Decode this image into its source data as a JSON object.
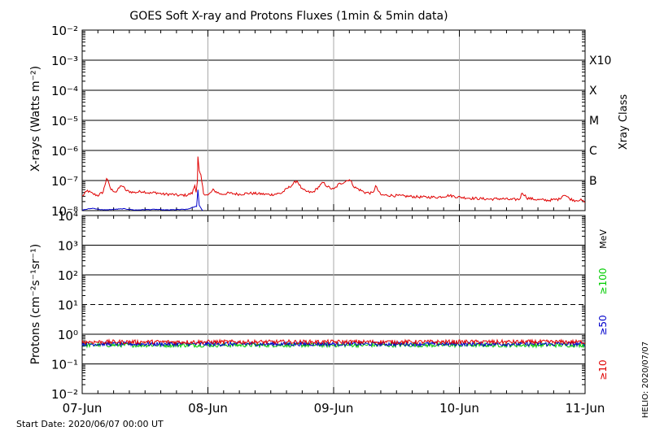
{
  "chart_data": [
    {
      "type": "line",
      "title": "GOES Soft X-ray and Protons Fluxes   (1min & 5min data)",
      "ylabel": "X-rays (Watts m⁻²)",
      "y_scale": "log",
      "ylim": [
        1e-08,
        0.01
      ],
      "y_tick_labels": [
        "10⁻⁸",
        "10⁻⁷",
        "10⁻⁶",
        "10⁻⁵",
        "10⁻⁴",
        "10⁻³",
        "10⁻²"
      ],
      "right_axis_label": "Xray Class",
      "class_labels": [
        {
          "label": "B",
          "value": 1e-07
        },
        {
          "label": "C",
          "value": 1e-06
        },
        {
          "label": "M",
          "value": 1e-05
        },
        {
          "label": "X",
          "value": 0.0001
        },
        {
          "label": "X10",
          "value": 0.001
        }
      ],
      "series": [
        {
          "color": "#e00000",
          "points": [
            [
              "2020-06-07 00:00",
              3e-08
            ],
            [
              "2020-06-07 01:00",
              4.6e-08
            ],
            [
              "2020-06-07 02:00",
              3.6e-08
            ],
            [
              "2020-06-07 03:00",
              3.2e-08
            ],
            [
              "2020-06-07 03:40",
              3.8e-08
            ],
            [
              "2020-06-07 04:00",
              4.2e-08
            ],
            [
              "2020-06-07 04:40",
              1.2e-07
            ],
            [
              "2020-06-07 05:30",
              5e-08
            ],
            [
              "2020-06-07 06:30",
              4.2e-08
            ],
            [
              "2020-06-07 07:30",
              7e-08
            ],
            [
              "2020-06-07 08:30",
              4.5e-08
            ],
            [
              "2020-06-07 10:00",
              4e-08
            ],
            [
              "2020-06-07 11:30",
              4.4e-08
            ],
            [
              "2020-06-07 13:00",
              3.8e-08
            ],
            [
              "2020-06-07 14:00",
              4e-08
            ],
            [
              "2020-06-07 15:30",
              3.5e-08
            ],
            [
              "2020-06-07 17:00",
              3.5e-08
            ],
            [
              "2020-06-07 18:30",
              3.2e-08
            ],
            [
              "2020-06-07 20:00",
              3.3e-08
            ],
            [
              "2020-06-07 21:00",
              3.8e-08
            ],
            [
              "2020-06-07 21:30",
              7e-08
            ],
            [
              "2020-06-07 21:45",
              4.5e-08
            ],
            [
              "2020-06-07 22:00",
              1e-07
            ],
            [
              "2020-06-07 22:05",
              6e-07
            ],
            [
              "2020-06-07 22:20",
              2e-07
            ],
            [
              "2020-06-07 22:40",
              1.4e-07
            ],
            [
              "2020-06-07 23:10",
              3.8e-08
            ],
            [
              "2020-06-08 00:00",
              3.2e-08
            ],
            [
              "2020-06-08 01:00",
              4.8e-08
            ],
            [
              "2020-06-08 02:30",
              3.5e-08
            ],
            [
              "2020-06-08 04:00",
              3.8e-08
            ],
            [
              "2020-06-08 06:00",
              3.5e-08
            ],
            [
              "2020-06-08 08:00",
              3.8e-08
            ],
            [
              "2020-06-08 10:00",
              3.6e-08
            ],
            [
              "2020-06-08 12:00",
              3.4e-08
            ],
            [
              "2020-06-08 14:00",
              3.8e-08
            ],
            [
              "2020-06-08 16:00",
              7e-08
            ],
            [
              "2020-06-08 17:00",
              1e-07
            ],
            [
              "2020-06-08 18:00",
              5e-08
            ],
            [
              "2020-06-08 19:00",
              4.2e-08
            ],
            [
              "2020-06-08 20:00",
              4e-08
            ],
            [
              "2020-06-08 22:00",
              8.5e-08
            ],
            [
              "2020-06-08 23:00",
              6e-08
            ],
            [
              "2020-06-09 00:00",
              5e-08
            ],
            [
              "2020-06-09 01:00",
              7.5e-08
            ],
            [
              "2020-06-09 02:00",
              9e-08
            ],
            [
              "2020-06-09 03:00",
              1.1e-07
            ],
            [
              "2020-06-09 04:00",
              6e-08
            ],
            [
              "2020-06-09 06:00",
              4e-08
            ],
            [
              "2020-06-09 07:30",
              3.8e-08
            ],
            [
              "2020-06-09 08:00",
              6.5e-08
            ],
            [
              "2020-06-09 09:00",
              3.3e-08
            ],
            [
              "2020-06-09 11:00",
              3.2e-08
            ],
            [
              "2020-06-09 14:00",
              3e-08
            ],
            [
              "2020-06-09 17:00",
              2.8e-08
            ],
            [
              "2020-06-09 20:00",
              2.8e-08
            ],
            [
              "2020-06-09 22:00",
              3.2e-08
            ],
            [
              "2020-06-10 00:00",
              2.8e-08
            ],
            [
              "2020-06-10 02:00",
              2.6e-08
            ],
            [
              "2020-06-10 04:00",
              2.5e-08
            ],
            [
              "2020-06-10 06:00",
              2.4e-08
            ],
            [
              "2020-06-10 08:00",
              2.5e-08
            ],
            [
              "2020-06-10 10:00",
              2.3e-08
            ],
            [
              "2020-06-10 11:30",
              2.4e-08
            ],
            [
              "2020-06-10 12:00",
              4e-08
            ],
            [
              "2020-06-10 13:00",
              2.6e-08
            ],
            [
              "2020-06-10 15:00",
              2.3e-08
            ],
            [
              "2020-06-10 17:00",
              2.2e-08
            ],
            [
              "2020-06-10 19:00",
              2.4e-08
            ],
            [
              "2020-06-10 20:00",
              3.5e-08
            ],
            [
              "2020-06-10 21:00",
              2.5e-08
            ],
            [
              "2020-06-10 22:00",
              2.2e-08
            ],
            [
              "2020-06-10 23:00",
              2.3e-08
            ],
            [
              "2020-06-11 00:00",
              1.9e-08
            ]
          ]
        },
        {
          "color": "#0000cc",
          "points": [
            [
              "2020-06-07 00:00",
              1.05e-08
            ],
            [
              "2020-06-07 02:00",
              1.2e-08
            ],
            [
              "2020-06-07 04:00",
              1.05e-08
            ],
            [
              "2020-06-07 06:00",
              1.1e-08
            ],
            [
              "2020-06-07 08:00",
              1.15e-08
            ],
            [
              "2020-06-07 10:00",
              1.05e-08
            ],
            [
              "2020-06-07 12:00",
              1.08e-08
            ],
            [
              "2020-06-07 14:00",
              1.1e-08
            ],
            [
              "2020-06-07 16:00",
              1.05e-08
            ],
            [
              "2020-06-07 18:00",
              1.08e-08
            ],
            [
              "2020-06-07 20:00",
              1.1e-08
            ],
            [
              "2020-06-07 21:50",
              1.4e-08
            ],
            [
              "2020-06-07 22:05",
              5e-08
            ],
            [
              "2020-06-07 22:20",
              1.5e-08
            ],
            [
              "2020-06-07 23:00",
              1e-08
            ]
          ]
        }
      ]
    },
    {
      "type": "line",
      "ylabel": "Protons (cm⁻²s⁻¹sr⁻¹)",
      "y_scale": "log",
      "ylim": [
        0.01,
        10000
      ],
      "y_tick_labels": [
        "10⁻²",
        "10⁻¹",
        "10⁰",
        "10¹",
        "10²",
        "10³",
        "10⁴"
      ],
      "threshold": 10,
      "unit": "MeV",
      "x": [
        "07-Jun",
        "08-Jun",
        "09-Jun",
        "10-Jun",
        "11-Jun"
      ],
      "series": [
        {
          "name": "≥10",
          "color": "#e00000",
          "baseline": 0.55
        },
        {
          "name": "≥50",
          "color": "#0000cc",
          "baseline": 0.47
        },
        {
          "name": "≥100",
          "color": "#00cc00",
          "baseline": 0.43
        }
      ]
    }
  ],
  "footer": {
    "start_date": "Start Date: 2020/06/07 00:00 UT",
    "helio": "HELIO: 2020/07/07"
  }
}
